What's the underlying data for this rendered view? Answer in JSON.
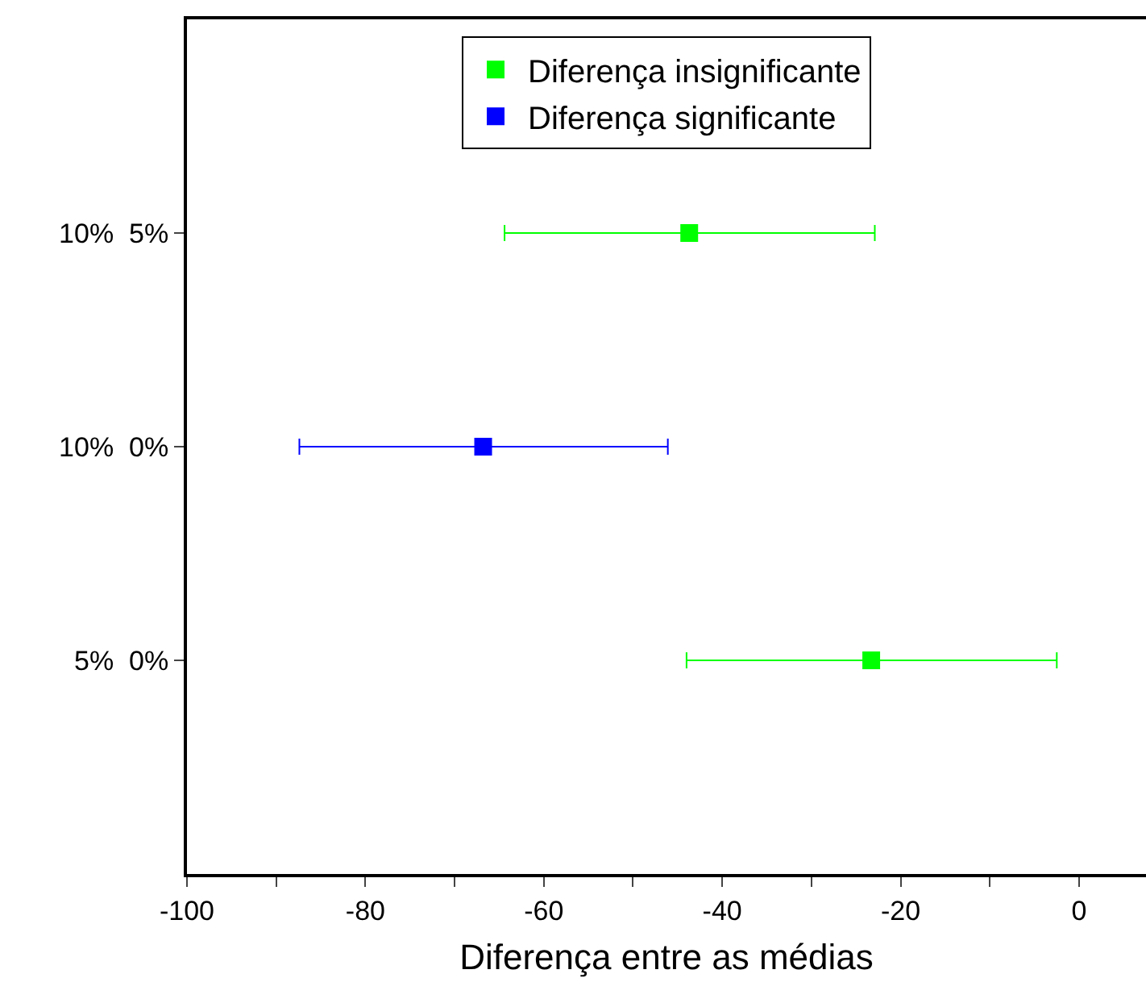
{
  "chart_data": {
    "type": "scatter",
    "orientation": "horizontal",
    "categories": [
      "10%  5%",
      "10%  0%",
      "5%  0%"
    ],
    "xlabel": "Diferença entre as médias",
    "xlim": [
      -100,
      7.5
    ],
    "xticks": [
      -100,
      {
        "value": -90,
        "label": null
      },
      -80,
      {
        "value": -70,
        "label": null
      },
      -60,
      {
        "value": -50,
        "label": null
      },
      -40,
      {
        "value": -30,
        "label": null
      },
      -20,
      {
        "value": -10,
        "label": null
      },
      0
    ],
    "series": [
      {
        "name": "Diferença insignificante",
        "color": "#00ff00",
        "values": [
          -43.7,
          null,
          -23.3
        ],
        "errors": [
          [
            -64.4,
            -22.9
          ],
          null,
          [
            -44.0,
            -2.5
          ]
        ]
      },
      {
        "name": "Diferença significante",
        "color": "#0000ff",
        "values": [
          null,
          -66.8,
          null
        ],
        "errors": [
          null,
          [
            -87.4,
            -46.1
          ],
          null
        ]
      }
    ],
    "marker": "square",
    "grid": false,
    "legend": "top"
  }
}
